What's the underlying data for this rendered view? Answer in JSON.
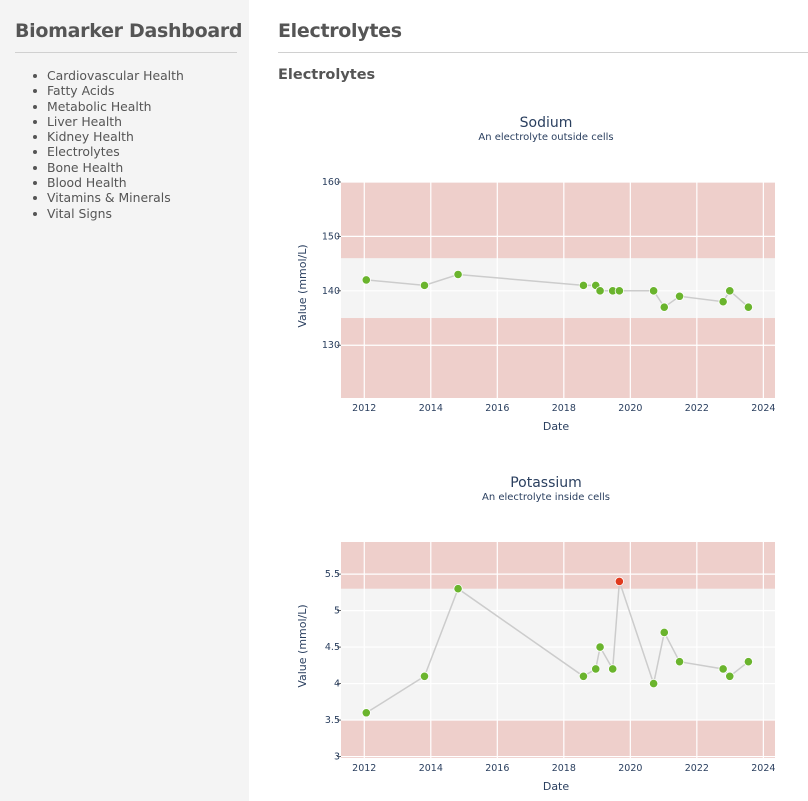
{
  "sidebar": {
    "title": "Biomarker Dashboard",
    "items": [
      {
        "label": "Cardiovascular Health"
      },
      {
        "label": "Fatty Acids"
      },
      {
        "label": "Metabolic Health"
      },
      {
        "label": "Liver Health"
      },
      {
        "label": "Kidney Health"
      },
      {
        "label": "Electrolytes"
      },
      {
        "label": "Bone Health"
      },
      {
        "label": "Blood Health"
      },
      {
        "label": "Vitamins & Minerals"
      },
      {
        "label": "Vital Signs"
      }
    ]
  },
  "main": {
    "title": "Electrolytes",
    "section_title": "Electrolytes"
  },
  "colors": {
    "normal_marker": "#6ab42d",
    "abnormal_marker": "#e03a1e",
    "out_of_range_band": "#eecfcb",
    "normal_band": "#f4f4f4",
    "line": "#cccccc",
    "text": "#2a3f5f"
  },
  "chart_data": [
    {
      "type": "line",
      "title": "Sodium",
      "subtitle": "An electrolyte outside cells",
      "xlabel": "Date",
      "ylabel": "Value (mmol/L)",
      "xlim": [
        2011.3,
        2024.35
      ],
      "ylim": [
        120.3,
        160
      ],
      "xticks": [
        2012,
        2014,
        2016,
        2018,
        2020,
        2022,
        2024
      ],
      "xtick_labels": [
        "2012",
        "2014",
        "2016",
        "2018",
        "2020",
        "2022",
        "2024"
      ],
      "yticks": [
        130,
        140,
        150,
        160
      ],
      "ytick_labels": [
        "130",
        "140",
        "150",
        "160"
      ],
      "normal_range": [
        135,
        146
      ],
      "grid": true,
      "x": [
        2012.06,
        2013.81,
        2014.82,
        2018.59,
        2018.96,
        2019.09,
        2019.47,
        2019.67,
        2020.7,
        2021.02,
        2021.48,
        2022.79,
        2022.99,
        2023.55
      ],
      "y": [
        142,
        141,
        143,
        141,
        141,
        140,
        140,
        140,
        140,
        137,
        139,
        138,
        140,
        137
      ]
    },
    {
      "type": "line",
      "title": "Potassium",
      "subtitle": "An electrolyte inside cells",
      "xlabel": "Date",
      "ylabel": "Value (mmol/L)",
      "xlim": [
        2011.3,
        2024.35
      ],
      "ylim": [
        2.98,
        5.94
      ],
      "xticks": [
        2012,
        2014,
        2016,
        2018,
        2020,
        2022,
        2024
      ],
      "xtick_labels": [
        "2012",
        "2014",
        "2016",
        "2018",
        "2020",
        "2022",
        "2024"
      ],
      "yticks": [
        3,
        3.5,
        4,
        4.5,
        5,
        5.5
      ],
      "ytick_labels": [
        "3",
        "3.5",
        "4",
        "4.5",
        "5",
        "5.5"
      ],
      "normal_range": [
        3.5,
        5.3
      ],
      "grid": true,
      "x": [
        2012.06,
        2013.81,
        2014.82,
        2018.59,
        2018.96,
        2019.09,
        2019.47,
        2019.67,
        2020.7,
        2021.02,
        2021.48,
        2022.79,
        2022.99,
        2023.55
      ],
      "y": [
        3.6,
        4.1,
        5.3,
        4.1,
        4.2,
        4.5,
        4.2,
        5.4,
        4.0,
        4.7,
        4.3,
        4.2,
        4.1,
        4.3
      ]
    }
  ]
}
